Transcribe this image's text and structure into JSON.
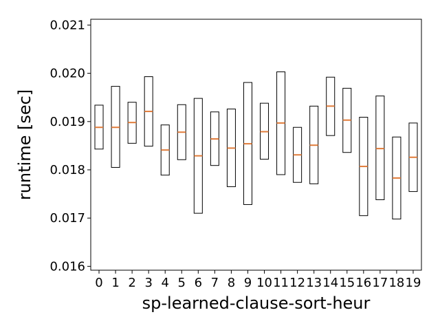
{
  "chart_data": {
    "type": "box",
    "xlabel": "sp-learned-clause-sort-heur",
    "ylabel": "runtime [sec]",
    "categories": [
      "0",
      "1",
      "2",
      "3",
      "4",
      "5",
      "6",
      "7",
      "8",
      "9",
      "10",
      "11",
      "12",
      "13",
      "14",
      "15",
      "16",
      "17",
      "18",
      "19"
    ],
    "ylim": [
      0.01592,
      0.02112
    ],
    "yticks": [
      0.016,
      0.017,
      0.018,
      0.019,
      0.02,
      0.021
    ],
    "ytick_labels": [
      "0.016",
      "0.017",
      "0.018",
      "0.019",
      "0.020",
      "0.021"
    ],
    "boxes": [
      {
        "q1": 0.01843,
        "median": 0.01888,
        "q3": 0.01934
      },
      {
        "q1": 0.01805,
        "median": 0.01888,
        "q3": 0.01973
      },
      {
        "q1": 0.01855,
        "median": 0.01898,
        "q3": 0.0194
      },
      {
        "q1": 0.01849,
        "median": 0.01921,
        "q3": 0.01993
      },
      {
        "q1": 0.01789,
        "median": 0.01841,
        "q3": 0.01893
      },
      {
        "q1": 0.01821,
        "median": 0.01878,
        "q3": 0.01935
      },
      {
        "q1": 0.0171,
        "median": 0.01829,
        "q3": 0.01948
      },
      {
        "q1": 0.01809,
        "median": 0.01864,
        "q3": 0.0192
      },
      {
        "q1": 0.01765,
        "median": 0.01845,
        "q3": 0.01926
      },
      {
        "q1": 0.01728,
        "median": 0.01854,
        "q3": 0.01981
      },
      {
        "q1": 0.01822,
        "median": 0.01879,
        "q3": 0.01938
      },
      {
        "q1": 0.0179,
        "median": 0.01897,
        "q3": 0.02003
      },
      {
        "q1": 0.01774,
        "median": 0.01831,
        "q3": 0.01888
      },
      {
        "q1": 0.01771,
        "median": 0.01851,
        "q3": 0.01932
      },
      {
        "q1": 0.01871,
        "median": 0.01932,
        "q3": 0.01992
      },
      {
        "q1": 0.01836,
        "median": 0.01903,
        "q3": 0.01969
      },
      {
        "q1": 0.01705,
        "median": 0.01807,
        "q3": 0.01909
      },
      {
        "q1": 0.01738,
        "median": 0.01844,
        "q3": 0.01953
      },
      {
        "q1": 0.01698,
        "median": 0.01783,
        "q3": 0.01868
      },
      {
        "q1": 0.01755,
        "median": 0.01826,
        "q3": 0.01897
      }
    ],
    "box_color": "#000000",
    "median_color": "#e07b39",
    "grid": false,
    "legend": "none"
  }
}
